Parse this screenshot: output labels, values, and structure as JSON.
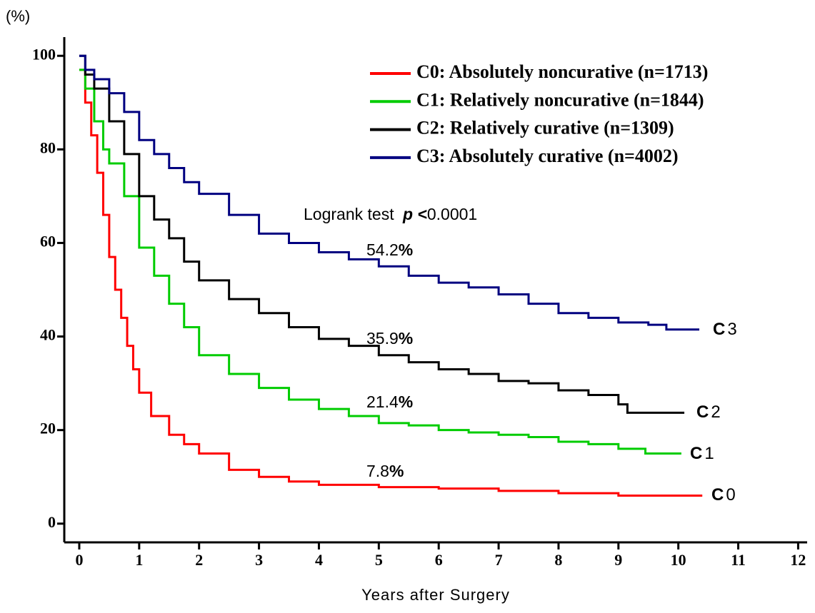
{
  "chart_data": {
    "type": "step",
    "y_axis_label": "(%)",
    "x_axis_label": "Years after Surgery",
    "xlim": [
      -0.25,
      12.15
    ],
    "ylim": [
      -4,
      104
    ],
    "xticks": [
      0,
      1,
      2,
      3,
      4,
      5,
      6,
      7,
      8,
      9,
      10,
      11,
      12
    ],
    "yticks": [
      0,
      20,
      40,
      60,
      80,
      100
    ],
    "legend": "upper right",
    "series": [
      {
        "name": "C0: Absolutely noncurative (n=1713)",
        "color": "#ff0000",
        "end_label": [
          "C",
          "0"
        ],
        "x": [
          0,
          0.1,
          0.2,
          0.3,
          0.4,
          0.5,
          0.6,
          0.7,
          0.8,
          0.9,
          1,
          1.2,
          1.5,
          1.75,
          2,
          2.5,
          3,
          3.5,
          4,
          5,
          6,
          7,
          8,
          9,
          10.4
        ],
        "values": [
          97,
          90,
          83,
          75,
          66,
          57,
          50,
          44,
          38,
          33,
          28,
          23,
          19,
          17,
          15,
          11.5,
          10,
          9,
          8.3,
          7.8,
          7.5,
          7,
          6.5,
          6,
          6
        ]
      },
      {
        "name": "C1: Relatively noncurative (n=1844)",
        "color": "#00cc00",
        "end_label": [
          "C",
          "1"
        ],
        "x": [
          0,
          0.1,
          0.25,
          0.4,
          0.5,
          0.75,
          1,
          1.25,
          1.5,
          1.75,
          2,
          2.5,
          3,
          3.5,
          4,
          4.5,
          5,
          5.5,
          6,
          6.5,
          7,
          7.5,
          8,
          8.5,
          9,
          9.45,
          10.05
        ],
        "values": [
          97,
          93,
          86,
          80,
          77,
          70,
          59,
          53,
          47,
          42,
          36,
          32,
          29,
          26.5,
          24.5,
          23,
          21.5,
          21,
          20,
          19.5,
          19,
          18.5,
          17.5,
          17,
          16,
          15,
          15
        ]
      },
      {
        "name": "C2: Relatively curative (n=1309)",
        "color": "#000000",
        "end_label": [
          "C",
          "2"
        ],
        "x": [
          0,
          0.1,
          0.25,
          0.5,
          0.75,
          1,
          1.25,
          1.5,
          1.75,
          2,
          2.5,
          3,
          3.5,
          4,
          4.5,
          5,
          5.5,
          6,
          6.5,
          7,
          7.5,
          8,
          8.5,
          9,
          9.15,
          10.1
        ],
        "values": [
          100,
          96,
          93,
          86,
          79,
          70,
          65,
          61,
          56,
          52,
          48,
          45,
          42,
          39.5,
          38,
          36,
          34.5,
          33,
          32,
          30.5,
          30,
          28.5,
          27.5,
          25.5,
          23.7,
          23.7
        ]
      },
      {
        "name": "C3: Absolutely curative (n=4002)",
        "color": "#000080",
        "end_label": [
          "C",
          "3"
        ],
        "x": [
          0,
          0.1,
          0.25,
          0.5,
          0.75,
          1,
          1.25,
          1.5,
          1.75,
          2,
          2.5,
          3,
          3.5,
          4,
          4.5,
          5,
          5.5,
          6,
          6.5,
          7,
          7.5,
          8,
          8.5,
          9,
          9.5,
          9.8,
          10.35
        ],
        "values": [
          100,
          97,
          95,
          92,
          88,
          82,
          79,
          76,
          73,
          70.5,
          66,
          62,
          60,
          58,
          56.5,
          55,
          53,
          51.5,
          50.5,
          49,
          47,
          45,
          44,
          43,
          42.5,
          41.5,
          41.5
        ]
      }
    ],
    "annotations": [
      [
        "Logrank test ",
        "p <",
        "0.0001"
      ],
      [
        "54.2",
        "%"
      ],
      [
        "35.9",
        "%"
      ],
      [
        "21.4",
        "%"
      ],
      [
        "7.8",
        "%"
      ]
    ]
  }
}
